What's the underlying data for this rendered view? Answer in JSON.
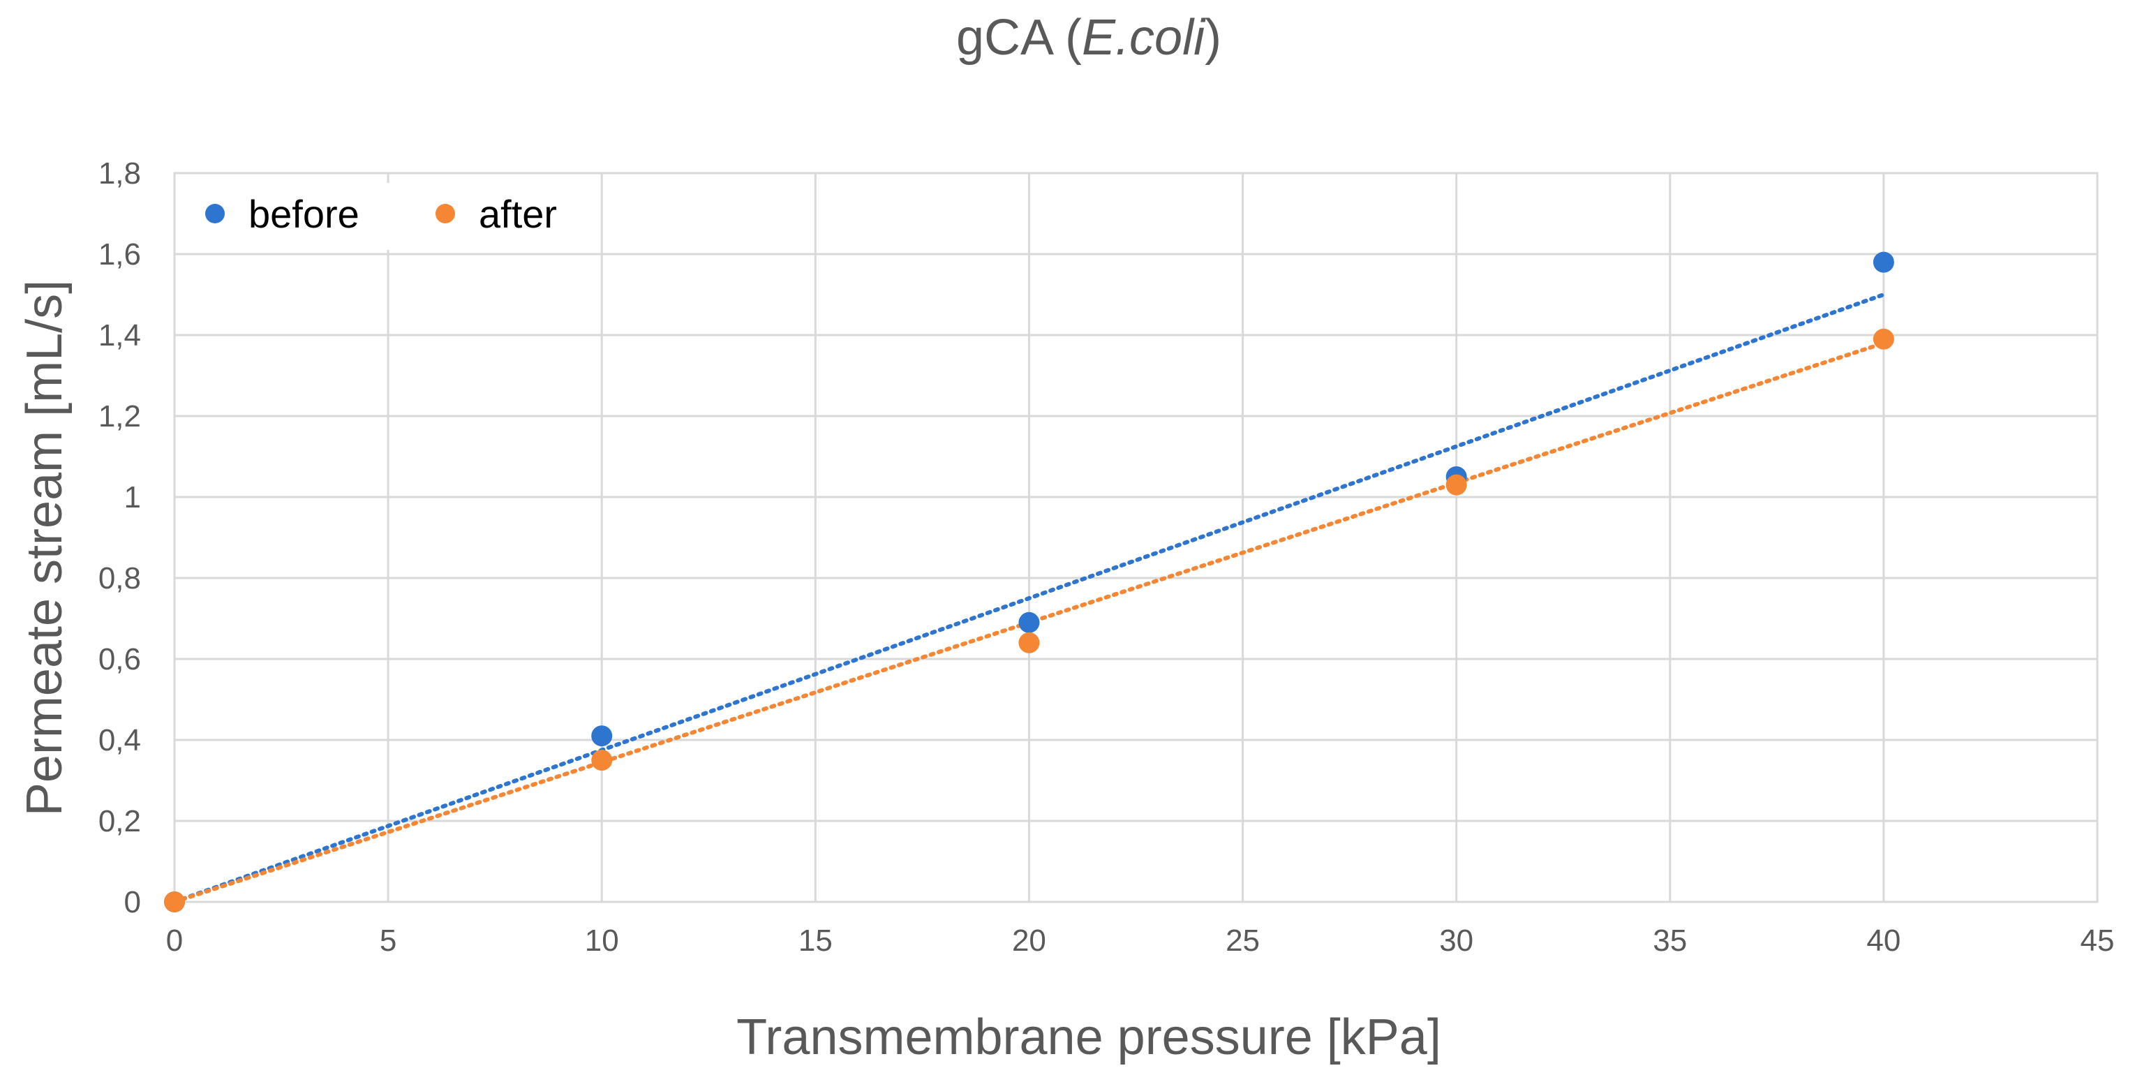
{
  "chart_data": {
    "type": "scatter",
    "title": "gCA (E.coli)",
    "title_parts": {
      "prefix": "gCA (",
      "italic": "E.coli",
      "suffix": ")"
    },
    "xlabel": "Transmembrane pressure [kPa]",
    "ylabel": "Permeate stream [mL/s]",
    "xlim": [
      0,
      45
    ],
    "ylim": [
      0,
      1.8
    ],
    "x_ticks": [
      0,
      5,
      10,
      15,
      20,
      25,
      30,
      35,
      40,
      45
    ],
    "x_tick_labels": [
      "0",
      "5",
      "10",
      "15",
      "20",
      "25",
      "30",
      "35",
      "40",
      "45"
    ],
    "y_ticks": [
      0,
      0.2,
      0.4,
      0.6,
      0.8,
      1.0,
      1.2,
      1.4,
      1.6,
      1.8
    ],
    "y_tick_labels": [
      "0",
      "0,2",
      "0,4",
      "0,6",
      "0,8",
      "1",
      "1,2",
      "1,4",
      "1,6",
      "1,8"
    ],
    "grid": true,
    "legend_position": "top-left",
    "series": [
      {
        "name": "before",
        "color": "#2e75d0",
        "x": [
          0,
          10,
          20,
          30,
          40
        ],
        "y": [
          0,
          0.41,
          0.69,
          1.05,
          1.58
        ],
        "trendline": {
          "type": "linear",
          "x": [
            0,
            40
          ],
          "y": [
            0,
            1.5
          ]
        }
      },
      {
        "name": "after",
        "color": "#f58634",
        "x": [
          0,
          10,
          20,
          30,
          40
        ],
        "y": [
          0,
          0.35,
          0.64,
          1.03,
          1.39
        ],
        "trendline": {
          "type": "linear",
          "x": [
            0,
            40
          ],
          "y": [
            0,
            1.38
          ]
        }
      }
    ]
  }
}
